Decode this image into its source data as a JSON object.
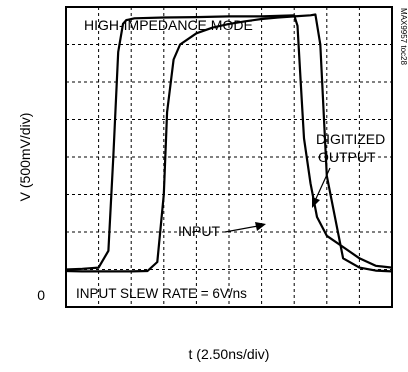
{
  "chart_data": {
    "type": "line",
    "title": "HIGH-IMPEDANCE MODE",
    "annotation": "INPUT SLEW RATE = 6V/ns",
    "figure_id": "MAX9957 toc28",
    "xlabel": "t (2.50ns/div)",
    "ylabel": "V (500mV/div)",
    "y_zero_label": "0",
    "grid": true,
    "divisions": {
      "x": 10,
      "y": 8
    },
    "xlim": [
      0,
      10
    ],
    "ylim": [
      0,
      8
    ],
    "zero_level_div": 1,
    "series": [
      {
        "name": "DIGITIZED OUTPUT",
        "x": [
          0,
          0.5,
          1.0,
          1.3,
          1.45,
          1.6,
          1.75,
          1.85,
          2.1,
          3,
          4,
          5,
          6,
          7.0,
          7.1,
          7.2,
          7.3,
          7.5,
          7.7,
          8.0,
          8.5,
          9,
          9.5,
          10
        ],
        "y": [
          1.0,
          1.02,
          1.05,
          1.5,
          4.0,
          6.8,
          7.55,
          7.65,
          7.7,
          7.72,
          7.73,
          7.75,
          7.75,
          7.78,
          7.5,
          6.0,
          4.5,
          3.3,
          2.4,
          1.9,
          1.6,
          1.3,
          1.1,
          1.05
        ]
      },
      {
        "name": "INPUT",
        "x": [
          0,
          0.5,
          1.0,
          1.5,
          2.0,
          2.5,
          2.8,
          3.0,
          3.1,
          3.3,
          3.5,
          4.0,
          4.5,
          5.0,
          5.5,
          6.0,
          6.5,
          7.0,
          7.5,
          7.65,
          7.8,
          8.0,
          8.5,
          9.0,
          9.5,
          10
        ],
        "y": [
          0.96,
          0.95,
          0.95,
          0.95,
          0.95,
          0.96,
          1.2,
          3.0,
          5.2,
          6.6,
          7.0,
          7.3,
          7.45,
          7.55,
          7.62,
          7.68,
          7.72,
          7.75,
          7.78,
          7.8,
          7.0,
          3.5,
          1.3,
          1.05,
          0.97,
          0.95
        ]
      }
    ],
    "labels": {
      "output": [
        "DIGITIZED",
        "OUTPUT"
      ],
      "input": "INPUT"
    }
  }
}
